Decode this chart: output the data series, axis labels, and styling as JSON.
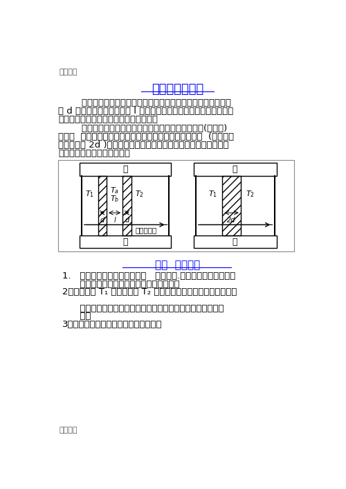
{
  "page_bg": "#ffffff",
  "watermark_text": "糟品文档",
  "watermark_color": "#555555",
  "watermark_fontsize": 8,
  "title": "双层玻璃的功效",
  "title_color": "#0000ff",
  "title_fontsize": 13,
  "body_color": "#000000",
  "body_fontsize": 9.5,
  "section_title": "一、  模型假设",
  "section_title_color": "#0000ff",
  "section_title_fontsize": 11,
  "diagram_border_color": "#888888",
  "glass_hatch": "///",
  "p1_lines": [
    "        北方城镇的有些建筑物的窗户是双层的，即窗户上装两层厚度",
    "为 d 的玻璃夹着一层厚度为 l 的空气，如左图所示，据说这样做是为",
    "了保暖，即减少室内向室外的热量流失．"
  ],
  "p2_lines": [
    "        我们要建立一个模型来描述热量通过窗户的热传导(即流失)",
    "过程，  并将双层玻璃窗与用同样多材料做成的单层玻璃窗  (如右图，",
    "玻璃厚度为 2d )的热量传导进行对比，对双层玻璃窗能够减少多少",
    "热量损失给出定量分析结果．"
  ],
  "item_lines": [
    "1.   热量的传播过程只有传导，   没有对流.即假定窗户的密封性能",
    "      很好，两层玻璃之间的空气是不流动的；",
    "2．室内温度 T₁ 和室外温度 T₂ 保持不变，热传导过程已处于稳定",
    "",
    "      状态，即沿热传导方向，单位时间通过单位面积的热量是常",
    "      数；",
    "3．玻璃材料均匀，热传导系数是常数．"
  ]
}
